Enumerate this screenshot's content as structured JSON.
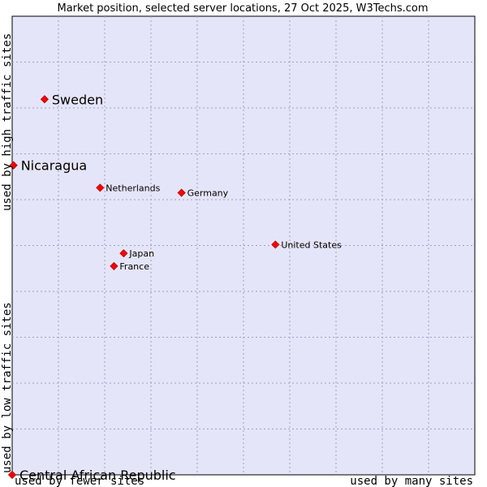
{
  "chart_data": {
    "type": "scatter",
    "title": "Market position, selected server locations, 27 Oct 2025, W3Techs.com",
    "xlabel_left": "used by fewer sites",
    "xlabel_right": "used by many sites",
    "ylabel_bottom": "used by low traffic sites",
    "ylabel_top": "used by high traffic sites",
    "xlim": [
      0,
      100
    ],
    "ylim": [
      0,
      100
    ],
    "grid": true,
    "colors": {
      "plot_bg": "#e5e5f9",
      "grid": "#a0a0c0",
      "point": "#ff0000",
      "point_stroke": "#aa0000"
    },
    "points": [
      {
        "label": "Sweden",
        "x": 7,
        "y": 81.9,
        "emphasis": true
      },
      {
        "label": "Nicaragua",
        "x": 0.3,
        "y": 67.5,
        "emphasis": true
      },
      {
        "label": "Netherlands",
        "x": 19,
        "y": 62.6,
        "emphasis": false
      },
      {
        "label": "Germany",
        "x": 36.6,
        "y": 61.5,
        "emphasis": false
      },
      {
        "label": "United States",
        "x": 56.9,
        "y": 50.2,
        "emphasis": false
      },
      {
        "label": "Japan",
        "x": 24.1,
        "y": 48.3,
        "emphasis": false
      },
      {
        "label": "France",
        "x": 22,
        "y": 45.5,
        "emphasis": false
      },
      {
        "label": "Central African Republic",
        "x": 0,
        "y": 0,
        "emphasis": true
      }
    ]
  }
}
